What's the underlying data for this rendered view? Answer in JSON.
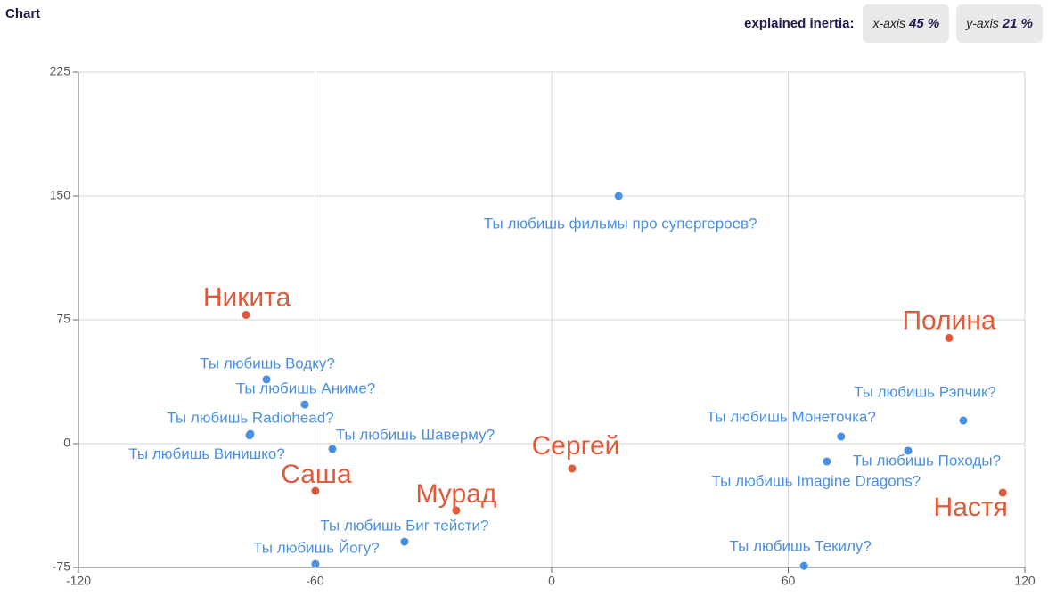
{
  "header": {
    "title": "Chart",
    "inertia_label": "explained inertia:",
    "chips": [
      {
        "axis": "x-axis",
        "value": "45 %"
      },
      {
        "axis": "y-axis",
        "value": "21 %"
      }
    ]
  },
  "chart_data": {
    "type": "scatter",
    "xlim": [
      -120,
      120
    ],
    "xticks": [
      -120,
      -60,
      0,
      60,
      120
    ],
    "ylim": [
      -75,
      225
    ],
    "yticks": [
      -75,
      0,
      75,
      150,
      225
    ],
    "grid": true,
    "series": [
      {
        "color": "#4a90e2",
        "labels": [
          "Ты любишь фильмы про супергероев?",
          "Ты любишь Водку?",
          "Ты любишь Аниме?",
          "Ты любишь Radiohead?",
          "Ты любишь Винишко?",
          "Ты любишь Шаверму?",
          "Ты любишь Биг тейсти?",
          "Ты любишь Йогу?",
          "Ты любишь Рэпчик?",
          "Ты любишь Монеточка?",
          "Ты любишь Походы?",
          "Ты любишь Imagine Dragons?",
          "Ты любишь Текилу?"
        ],
        "x": [
          17,
          -72.3,
          -62.6,
          -76.4,
          -76.6,
          -55.6,
          -37.3,
          -59.9,
          104.4,
          73.4,
          90.4,
          69.8,
          64
        ],
        "y": [
          150,
          38.9,
          23.7,
          5.9,
          5,
          -3.2,
          -59.4,
          -72.9,
          14,
          4.3,
          -4.3,
          -10.8,
          -74
        ]
      },
      {
        "color": "#e05a3a",
        "labels": [
          "Никита",
          "Полина",
          "Саша",
          "Мурад",
          "Сергей",
          "Настя"
        ],
        "x": [
          -77.5,
          100.8,
          -59.9,
          -24.2,
          5.2,
          114.4
        ],
        "y": [
          78,
          64,
          -28.6,
          -40.5,
          -15.1,
          -29.7
        ]
      }
    ]
  }
}
